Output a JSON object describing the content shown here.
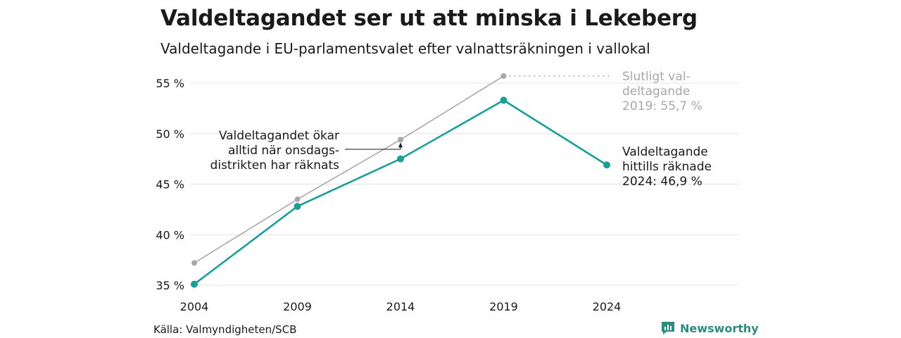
{
  "title": "Valdeltagandet ser ut att minska i Lekeberg",
  "subtitle": "Valdeltagande i EU-parlamentsvalet efter valnattsräkningen i vallokal",
  "source": "Källa: Valmyndigheten/SCB",
  "brand": "Newsworthy",
  "colors": {
    "final": "#a8a8a8",
    "count": "#1a9e96",
    "grid": "#e3e3e3",
    "brand": "#2e8b80"
  },
  "chart_data": {
    "type": "line",
    "x": [
      2004,
      2009,
      2014,
      2019,
      2024
    ],
    "ylim": [
      35,
      55.7
    ],
    "yticks": [
      35,
      40,
      45,
      50,
      55
    ],
    "ytick_labels": [
      "35 %",
      "40 %",
      "45 %",
      "50 %",
      "55 %"
    ],
    "xtick_labels": [
      "2004",
      "2009",
      "2014",
      "2019",
      "2024"
    ],
    "grid": true,
    "series": [
      {
        "key": "final",
        "values": [
          37.2,
          43.5,
          49.4,
          55.7,
          null
        ]
      },
      {
        "key": "count",
        "values": [
          35.1,
          42.8,
          47.5,
          53.3,
          46.9
        ]
      }
    ],
    "annotations": {
      "final_label": [
        "Slutligt val-",
        "deltagande",
        "2019: 55,7 %"
      ],
      "count_label": [
        "Valdeltagande",
        "hittills räknade",
        "2024: 46,9 %"
      ],
      "note": [
        "Valdeltagandet ökar",
        "alltid när onsdags-",
        "distrikten har räknats"
      ]
    }
  }
}
